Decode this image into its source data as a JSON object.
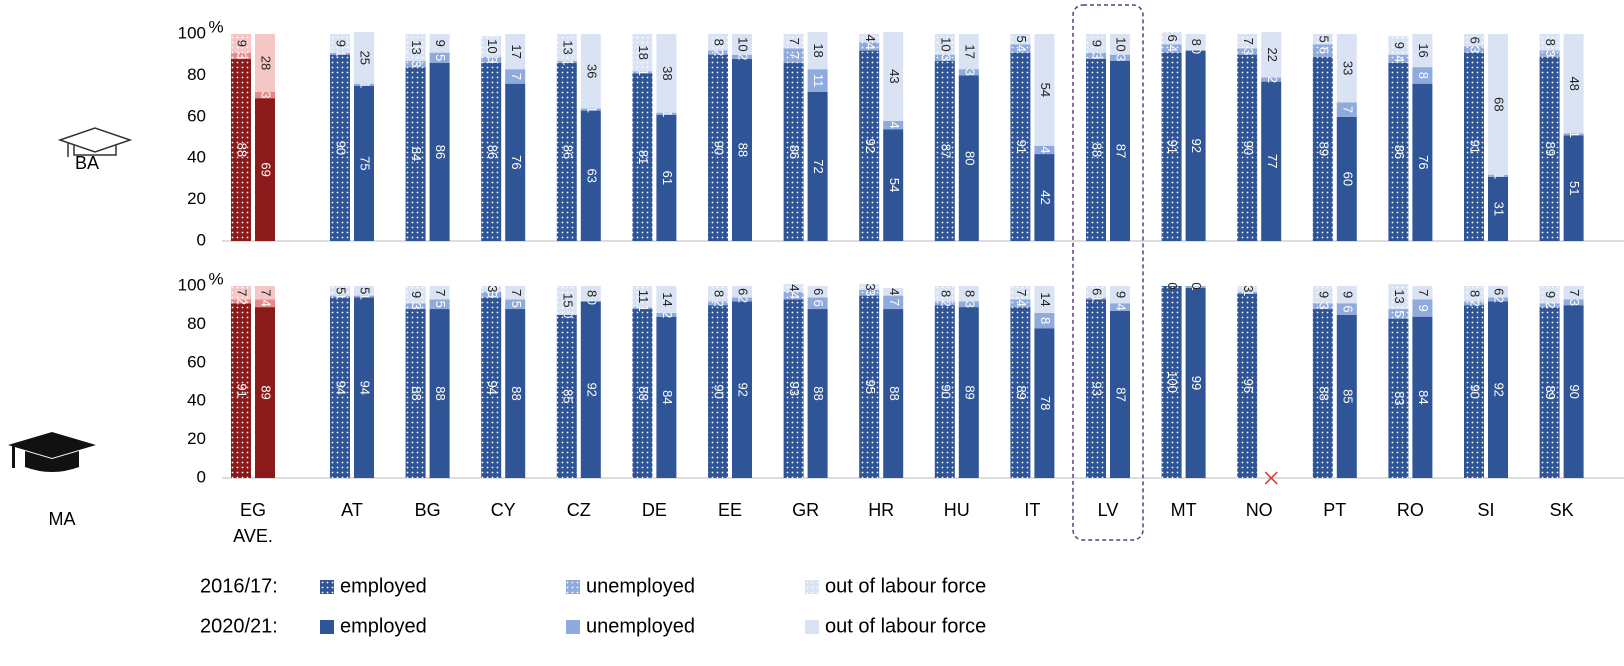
{
  "chart_data": [
    {
      "type": "bar",
      "label": "BA",
      "y_unit": "%",
      "ylim": [
        0,
        100
      ],
      "yticks": [
        0,
        20,
        40,
        60,
        80,
        100
      ],
      "categories": [
        "EG AVE.",
        "AT",
        "BG",
        "CY",
        "CZ",
        "DE",
        "EE",
        "GR",
        "HR",
        "HU",
        "IT",
        "LV",
        "MT",
        "NO",
        "PT",
        "RO",
        "SI",
        "SK"
      ],
      "highlight": "LV",
      "series": [
        {
          "name": "employed",
          "period": "2016/17:",
          "color": "#2f5597",
          "lead_color": "#8b1a1a",
          "pattern": "dots",
          "values": [
            88,
            90,
            84,
            86,
            86,
            81,
            90,
            86,
            92,
            87,
            91,
            88,
            91,
            90,
            89,
            86,
            91,
            89
          ]
        },
        {
          "name": "unemployed",
          "period": "2016/17:",
          "color": "#8faadc",
          "lead_color": "#e58a8a",
          "pattern": "dots",
          "values": [
            3,
            1,
            3,
            3,
            1,
            1,
            2,
            7,
            4,
            3,
            4,
            3,
            4,
            3,
            6,
            4,
            3,
            3
          ]
        },
        {
          "name": "out of labour force",
          "period": "2016/17:",
          "color": "#dae3f3",
          "lead_color": "#f5c6c6",
          "pattern": "dots",
          "values": [
            9,
            9,
            13,
            10,
            13,
            18,
            8,
            7,
            4,
            10,
            5,
            9,
            6,
            7,
            5,
            9,
            6,
            8
          ]
        },
        {
          "name": "employed",
          "period": "2020/21:",
          "color": "#2f5597",
          "lead_color": "#8b1a1a",
          "values": [
            69,
            75,
            86,
            76,
            63,
            61,
            88,
            72,
            54,
            80,
            42,
            87,
            92,
            77,
            60,
            76,
            31,
            51
          ]
        },
        {
          "name": "unemployed",
          "period": "2020/21:",
          "color": "#8faadc",
          "lead_color": "#e58a8a",
          "values": [
            3,
            1,
            5,
            7,
            1,
            1,
            2,
            11,
            4,
            3,
            4,
            3,
            0,
            2,
            7,
            8,
            1,
            1
          ]
        },
        {
          "name": "out of labour force",
          "period": "2020/21:",
          "color": "#dae3f3",
          "lead_color": "#f5c6c6",
          "values": [
            28,
            25,
            9,
            17,
            36,
            38,
            10,
            18,
            43,
            17,
            54,
            10,
            8,
            22,
            33,
            16,
            68,
            48
          ]
        }
      ]
    },
    {
      "type": "bar",
      "label": "MA",
      "y_unit": "%",
      "ylim": [
        0,
        100
      ],
      "yticks": [
        0,
        20,
        40,
        60,
        80,
        100
      ],
      "categories": [
        "EG AVE.",
        "AT",
        "BG",
        "CY",
        "CZ",
        "DE",
        "EE",
        "GR",
        "HR",
        "HU",
        "IT",
        "LV",
        "MT",
        "NO",
        "PT",
        "RO",
        "SI",
        "SK"
      ],
      "highlight": "LV",
      "series": [
        {
          "name": "employed",
          "period": "2016/17:",
          "color": "#2f5597",
          "lead_color": "#8b1a1a",
          "pattern": "dots",
          "values": [
            91,
            94,
            88,
            94,
            85,
            88,
            90,
            93,
            95,
            90,
            89,
            93,
            100,
            96,
            88,
            83,
            90,
            89
          ]
        },
        {
          "name": "unemployed",
          "period": "2016/17:",
          "color": "#8faadc",
          "lead_color": "#e58a8a",
          "pattern": "dots",
          "values": [
            2,
            1,
            3,
            3,
            0,
            1,
            2,
            4,
            3,
            2,
            4,
            1,
            0,
            1,
            3,
            5,
            2,
            2
          ]
        },
        {
          "name": "out of labour force",
          "period": "2016/17:",
          "color": "#dae3f3",
          "lead_color": "#f5c6c6",
          "pattern": "dots",
          "values": [
            7,
            5,
            9,
            3,
            15,
            11,
            8,
            4,
            3,
            8,
            7,
            6,
            0,
            3,
            9,
            13,
            8,
            9
          ]
        },
        {
          "name": "employed",
          "period": "2020/21:",
          "color": "#2f5597",
          "lead_color": "#8b1a1a",
          "values": [
            89,
            94,
            88,
            88,
            92,
            84,
            92,
            88,
            88,
            89,
            78,
            87,
            99,
            null,
            85,
            84,
            92,
            90
          ]
        },
        {
          "name": "unemployed",
          "period": "2020/21:",
          "color": "#8faadc",
          "lead_color": "#e58a8a",
          "values": [
            4,
            1,
            5,
            5,
            0,
            2,
            2,
            6,
            7,
            3,
            8,
            4,
            1,
            null,
            6,
            9,
            2,
            3
          ]
        },
        {
          "name": "out of labour force",
          "period": "2020/21:",
          "color": "#dae3f3",
          "lead_color": "#f5c6c6",
          "values": [
            7,
            5,
            7,
            7,
            8,
            14,
            6,
            6,
            4,
            8,
            14,
            9,
            0,
            null,
            9,
            7,
            6,
            7
          ]
        }
      ]
    }
  ]
}
